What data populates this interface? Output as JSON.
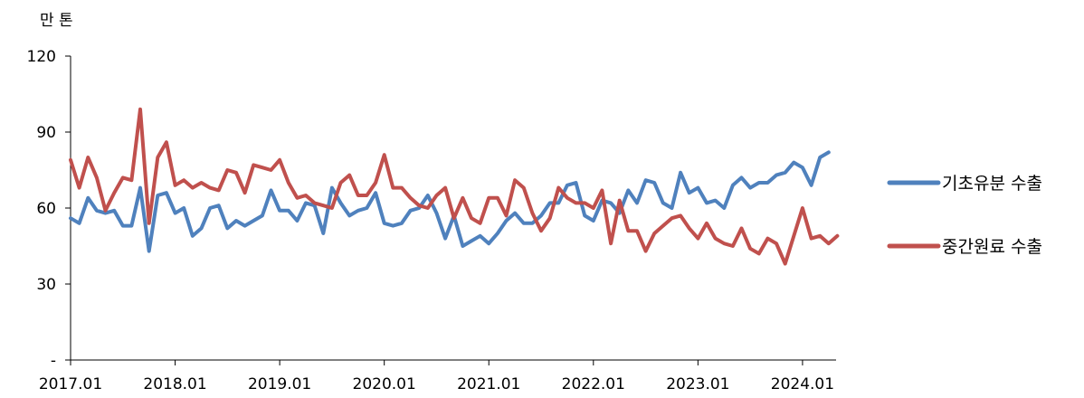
{
  "chart_data": {
    "type": "line",
    "title": "",
    "unit_label": "만 톤",
    "xlabel": "",
    "ylabel": "",
    "ylim": [
      0,
      120
    ],
    "y_ticks": [
      {
        "value": 120,
        "label": "120"
      },
      {
        "value": 90,
        "label": "90"
      },
      {
        "value": 60,
        "label": "60"
      },
      {
        "value": 30,
        "label": "30"
      },
      {
        "value": 0,
        "label": "-"
      }
    ],
    "x_ticks": [
      {
        "index": 0,
        "label": "2017.01"
      },
      {
        "index": 12,
        "label": "2018.01"
      },
      {
        "index": 24,
        "label": "2019.01"
      },
      {
        "index": 36,
        "label": "2020.01"
      },
      {
        "index": 48,
        "label": "2021.01"
      },
      {
        "index": 60,
        "label": "2022.01"
      },
      {
        "index": 72,
        "label": "2023.01"
      },
      {
        "index": 84,
        "label": "2024.01"
      }
    ],
    "x_start": "2017.01",
    "grid": false,
    "legend_position": "right",
    "series": [
      {
        "name": "기초유분 수출",
        "color": "#4f81bd",
        "values": [
          56,
          54,
          64,
          59,
          58,
          59,
          53,
          53,
          68,
          43,
          65,
          66,
          58,
          60,
          49,
          52,
          60,
          61,
          52,
          55,
          53,
          55,
          57,
          67,
          59,
          59,
          55,
          62,
          61,
          50,
          68,
          62,
          57,
          59,
          60,
          66,
          54,
          53,
          54,
          59,
          60,
          65,
          58,
          48,
          57,
          45,
          47,
          49,
          46,
          50,
          55,
          58,
          54,
          54,
          57,
          62,
          62,
          69,
          70,
          57,
          55,
          63,
          62,
          58,
          67,
          62,
          71,
          70,
          62,
          60,
          74,
          66,
          68,
          62,
          63,
          60,
          69,
          72,
          68,
          70,
          70,
          73,
          74,
          78,
          76,
          69,
          80,
          82
        ],
        "width": 4
      },
      {
        "name": "중간원료 수출",
        "color": "#c0504d",
        "values": [
          79,
          68,
          80,
          72,
          59,
          66,
          72,
          71,
          99,
          54,
          80,
          86,
          69,
          71,
          68,
          70,
          68,
          67,
          75,
          74,
          66,
          77,
          76,
          75,
          79,
          70,
          64,
          65,
          62,
          61,
          60,
          70,
          73,
          65,
          65,
          70,
          81,
          68,
          68,
          64,
          61,
          60,
          65,
          68,
          56,
          64,
          56,
          54,
          64,
          64,
          57,
          71,
          68,
          58,
          51,
          56,
          68,
          64,
          62,
          62,
          60,
          67,
          46,
          63,
          51,
          51,
          43,
          50,
          53,
          56,
          57,
          52,
          48,
          54,
          48,
          46,
          45,
          52,
          44,
          42,
          48,
          46,
          38,
          49,
          60,
          48,
          49,
          46,
          49
        ],
        "width": 4
      }
    ]
  }
}
